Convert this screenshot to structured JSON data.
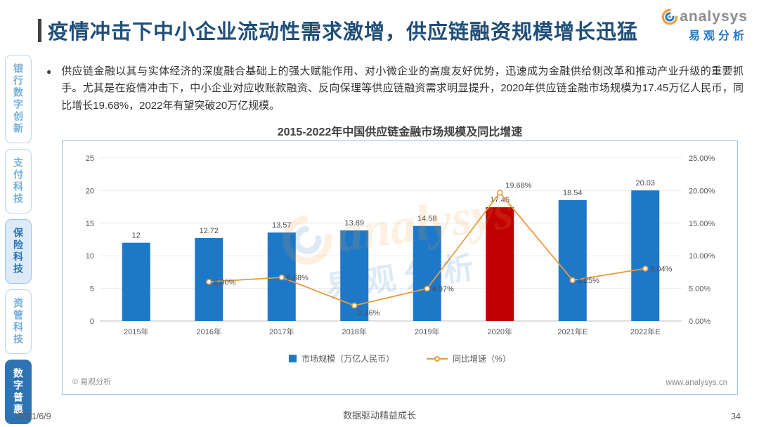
{
  "meta": {
    "date": "2021/6/9",
    "page_number": "34",
    "footer_slogan": "数据驱动精益成长",
    "website": "www.analysys.cn",
    "copyright": "© 易观分析"
  },
  "logo": {
    "name": "analysys",
    "name_cn": "易观分析"
  },
  "sidebar": {
    "items": [
      {
        "label": "银行数字创新",
        "state": "normal"
      },
      {
        "label": "支付科技",
        "state": "normal"
      },
      {
        "label": "保险科技",
        "state": "highlight"
      },
      {
        "label": "资管科技",
        "state": "normal"
      },
      {
        "label": "数字普惠",
        "state": "active"
      }
    ]
  },
  "header": {
    "title": "疫情冲击下中小企业流动性需求激增，供应链融资规模增长迅猛"
  },
  "summary": {
    "bullet": "●",
    "text": "供应链金融以其与实体经济的深度融合基础上的强大赋能作用、对小微企业的高度友好优势，迅速成为金融供给侧改革和推动产业升级的重要抓手。尤其是在疫情冲击下，中小企业对应收账款融资、反向保理等供应链融资需求明显提升，2020年供应链金融市场规模为17.45万亿人民币，同比增长19.68%，2022年有望突破20万亿规模。"
  },
  "chart_data": {
    "type": "bar+line",
    "title": "2015-2022年中国供应链金融市场规模及同比增速",
    "categories": [
      "2015年",
      "2016年",
      "2017年",
      "2018年",
      "2019年",
      "2020年",
      "2021年E",
      "2022年E"
    ],
    "series": [
      {
        "name": "市场规模（万亿人民币）",
        "type": "bar",
        "values": [
          12,
          12.72,
          13.57,
          13.89,
          14.58,
          17.45,
          18.54,
          20.03
        ],
        "color": "#1E78C8",
        "highlight_index": 5,
        "highlight_color": "#C00000"
      },
      {
        "name": "同比增速（%）",
        "type": "line",
        "values": [
          null,
          6.0,
          6.68,
          2.36,
          4.97,
          19.68,
          6.25,
          8.04
        ],
        "color": "#E89B40"
      }
    ],
    "bar_labels": [
      "12",
      "12.72",
      "13.57",
      "13.89",
      "14.58",
      "17.45",
      "18.54",
      "20.03"
    ],
    "line_labels": [
      "",
      "6.00%",
      "6.68%",
      "2.36%",
      "4.97%",
      "19.68%",
      "6.25%",
      "8.04%"
    ],
    "left_axis": {
      "min": 0,
      "max": 25,
      "step": 5,
      "ticks": [
        "0",
        "5",
        "10",
        "15",
        "20",
        "25"
      ]
    },
    "right_axis": {
      "ticks": [
        "0.00%",
        "5.00%",
        "10.00%",
        "15.00%",
        "20.00%",
        "25.00%"
      ]
    },
    "legend_position": "bottom",
    "grid": true
  }
}
